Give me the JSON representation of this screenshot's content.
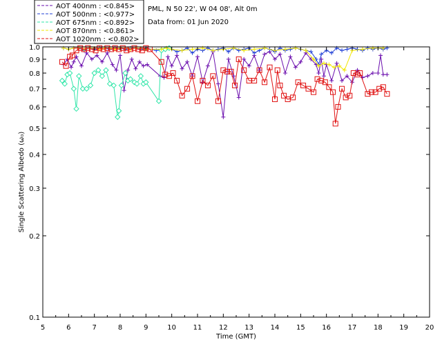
{
  "info": {
    "station": "PML, N 50 22', W 04 08', Alt 0m",
    "date": "Data from: 01 Jun 2020"
  },
  "chart_data": {
    "type": "scatter",
    "xlabel": "Time (GMT)",
    "ylabel": "Single Scattering Albedo (ω₀)",
    "xlim": [
      5,
      20
    ],
    "ylim": [
      0.1,
      1.0
    ],
    "yscale": "log",
    "xticks": [
      "5",
      "6",
      "7",
      "8",
      "9",
      "10",
      "11",
      "12",
      "13",
      "14",
      "15",
      "16",
      "17",
      "18",
      "19",
      "20"
    ],
    "yticks": [
      "0.1",
      "0.2",
      "0.3",
      "0.4",
      "0.5",
      "0.6",
      "0.7",
      "0.8",
      "0.9",
      "1.0"
    ],
    "legend_position": "top-left, outside plot",
    "series": [
      {
        "name": "AOT  400nm : <0.845>",
        "color": "#6a0dad",
        "marker": "plus",
        "x": [
          5.8,
          5.95,
          6.1,
          6.2,
          6.3,
          6.5,
          6.7,
          6.9,
          7.1,
          7.3,
          7.5,
          7.7,
          7.85,
          8.0,
          8.15,
          8.3,
          8.45,
          8.6,
          8.75,
          8.9,
          9.05,
          9.55,
          9.7,
          9.85,
          10.0,
          10.2,
          10.4,
          10.6,
          10.8,
          11.0,
          11.2,
          11.4,
          11.6,
          11.8,
          12.0,
          12.2,
          12.4,
          12.6,
          12.8,
          13.0,
          13.2,
          13.4,
          13.6,
          13.8,
          14.0,
          14.2,
          14.4,
          14.6,
          14.8,
          15.0,
          15.2,
          15.4,
          15.6,
          15.7,
          15.8,
          15.9,
          16.0,
          16.2,
          16.4,
          16.6,
          16.8,
          17.0,
          17.2,
          17.4,
          17.6,
          17.8,
          18.0,
          18.1,
          18.2,
          18.35
        ],
        "y": [
          0.86,
          0.9,
          0.84,
          0.88,
          0.92,
          0.85,
          0.95,
          0.9,
          0.93,
          0.88,
          0.95,
          0.86,
          0.82,
          0.93,
          0.69,
          0.82,
          0.9,
          0.83,
          0.88,
          0.85,
          0.86,
          0.78,
          0.77,
          0.92,
          0.85,
          0.93,
          0.83,
          0.88,
          0.78,
          0.92,
          0.74,
          0.85,
          0.96,
          0.73,
          0.55,
          0.9,
          0.78,
          0.65,
          0.9,
          0.85,
          0.93,
          0.82,
          0.94,
          0.96,
          0.9,
          0.94,
          0.8,
          0.92,
          0.84,
          0.88,
          0.95,
          0.9,
          0.86,
          0.8,
          0.9,
          0.78,
          0.86,
          0.75,
          0.87,
          0.75,
          0.78,
          0.74,
          0.82,
          0.77,
          0.78,
          0.8,
          0.8,
          0.93,
          0.79,
          0.79
        ]
      },
      {
        "name": "AOT  500nm : <0.977>",
        "color": "#1f3fd6",
        "marker": "plus",
        "x": [
          5.8,
          6.0,
          6.2,
          6.4,
          6.6,
          6.8,
          7.0,
          7.2,
          7.4,
          7.6,
          7.8,
          8.0,
          8.2,
          8.4,
          8.6,
          8.8,
          9.0,
          9.4,
          9.6,
          9.8,
          10.0,
          10.2,
          10.4,
          10.6,
          10.8,
          11.0,
          11.2,
          11.4,
          11.6,
          11.8,
          12.0,
          12.2,
          12.4,
          12.6,
          12.8,
          13.0,
          13.2,
          13.4,
          13.6,
          13.8,
          14.0,
          14.2,
          14.4,
          14.6,
          14.8,
          15.0,
          15.2,
          15.4,
          15.6,
          15.7,
          15.8,
          16.0,
          16.2,
          16.4,
          16.6,
          16.8,
          17.0,
          17.2,
          17.4,
          17.6,
          17.8,
          18.0,
          18.2,
          18.35
        ],
        "y": [
          0.99,
          0.98,
          0.99,
          0.99,
          0.97,
          0.99,
          0.98,
          0.99,
          0.99,
          0.98,
          0.99,
          0.99,
          0.98,
          0.99,
          0.99,
          0.98,
          0.99,
          0.97,
          0.98,
          0.99,
          0.98,
          0.96,
          0.97,
          0.99,
          0.95,
          0.98,
          0.97,
          0.99,
          0.97,
          0.98,
          0.99,
          0.96,
          0.99,
          0.97,
          0.98,
          0.99,
          0.95,
          0.97,
          0.99,
          0.98,
          0.96,
          0.99,
          0.97,
          0.98,
          0.99,
          0.98,
          0.97,
          0.96,
          0.9,
          0.86,
          0.94,
          0.97,
          0.95,
          0.99,
          0.97,
          0.98,
          0.99,
          0.98,
          0.97,
          0.99,
          0.98,
          0.99,
          0.98,
          0.99
        ]
      },
      {
        "name": "AOT  675nm : <0.892>",
        "color": "#2ee6a8",
        "marker": "diamond",
        "x": [
          5.75,
          5.85,
          5.95,
          6.05,
          6.2,
          6.3,
          6.4,
          6.55,
          6.7,
          6.85,
          7.0,
          7.15,
          7.3,
          7.45,
          7.6,
          7.75,
          7.9,
          7.95,
          8.05,
          8.2,
          8.3,
          8.4,
          8.55,
          8.65,
          8.8,
          8.9,
          9.0,
          9.5,
          9.6,
          9.75,
          9.9
        ],
        "y": [
          0.75,
          0.73,
          0.79,
          0.8,
          0.7,
          0.59,
          0.78,
          0.7,
          0.7,
          0.72,
          0.8,
          0.82,
          0.78,
          0.82,
          0.73,
          0.72,
          0.55,
          0.58,
          0.72,
          0.8,
          0.75,
          0.76,
          0.74,
          0.73,
          0.78,
          0.73,
          0.74,
          0.63,
          0.97,
          0.98,
          0.99
        ]
      },
      {
        "name": "AOT  870nm : <0.861>",
        "color": "#f2e600",
        "marker": "plus",
        "x": [
          5.8,
          6.0,
          6.2,
          6.4,
          6.6,
          6.8,
          7.0,
          7.2,
          7.4,
          7.6,
          7.8,
          8.0,
          8.2,
          8.4,
          8.6,
          8.8,
          9.0,
          9.6,
          9.8,
          10.0,
          10.4,
          10.8,
          11.2,
          11.6,
          12.0,
          12.4,
          12.8,
          13.2,
          13.6,
          14.0,
          14.4,
          14.8,
          15.2,
          15.5,
          15.7,
          15.9,
          16.1,
          16.3,
          16.5,
          16.7,
          17.0,
          17.4,
          17.8,
          18.2
        ],
        "y": [
          0.99,
          0.98,
          0.99,
          0.99,
          0.98,
          0.99,
          0.99,
          0.98,
          0.99,
          0.99,
          0.98,
          0.99,
          0.99,
          0.98,
          0.99,
          0.99,
          0.98,
          0.98,
          0.99,
          0.98,
          0.97,
          0.98,
          0.99,
          0.97,
          0.98,
          0.99,
          0.97,
          0.98,
          0.99,
          0.97,
          0.98,
          0.99,
          0.97,
          0.9,
          0.85,
          0.87,
          0.86,
          0.84,
          0.85,
          0.82,
          0.97,
          0.98,
          0.99,
          0.99
        ]
      },
      {
        "name": "AOT 1020nm : <0.802>",
        "color": "#e01010",
        "marker": "square",
        "x": [
          5.75,
          5.9,
          6.05,
          6.15,
          6.3,
          6.45,
          6.6,
          6.75,
          6.9,
          7.05,
          7.2,
          7.35,
          7.5,
          7.65,
          7.8,
          7.95,
          8.1,
          8.25,
          8.4,
          8.55,
          8.7,
          8.85,
          9.0,
          9.15,
          9.6,
          9.75,
          9.9,
          10.05,
          10.2,
          10.4,
          10.6,
          10.8,
          11.0,
          11.2,
          11.4,
          11.6,
          11.8,
          12.0,
          12.15,
          12.3,
          12.45,
          12.6,
          12.8,
          13.0,
          13.2,
          13.4,
          13.6,
          13.8,
          14.0,
          14.1,
          14.2,
          14.35,
          14.5,
          14.7,
          14.9,
          15.1,
          15.3,
          15.5,
          15.65,
          15.8,
          15.95,
          16.1,
          16.25,
          16.35,
          16.45,
          16.6,
          16.75,
          16.9,
          17.05,
          17.2,
          17.3,
          17.6,
          17.75,
          17.9,
          18.05,
          18.2,
          18.35
        ],
        "y": [
          0.88,
          0.85,
          0.92,
          0.93,
          0.97,
          0.99,
          0.98,
          0.99,
          0.98,
          0.97,
          0.99,
          0.98,
          0.99,
          0.98,
          0.99,
          0.98,
          0.99,
          0.97,
          0.98,
          0.99,
          0.98,
          0.97,
          0.99,
          0.98,
          0.88,
          0.79,
          0.78,
          0.8,
          0.75,
          0.66,
          0.7,
          0.78,
          0.63,
          0.75,
          0.72,
          0.78,
          0.63,
          0.82,
          0.81,
          0.81,
          0.72,
          0.9,
          0.82,
          0.75,
          0.75,
          0.82,
          0.74,
          0.84,
          0.64,
          0.82,
          0.72,
          0.66,
          0.64,
          0.65,
          0.74,
          0.72,
          0.7,
          0.68,
          0.76,
          0.75,
          0.74,
          0.71,
          0.68,
          0.52,
          0.6,
          0.7,
          0.65,
          0.66,
          0.8,
          0.79,
          0.8,
          0.67,
          0.68,
          0.68,
          0.7,
          0.71,
          0.67
        ]
      }
    ]
  }
}
